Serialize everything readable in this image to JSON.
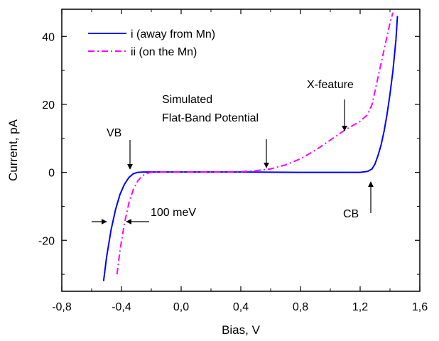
{
  "chart_data": {
    "type": "line",
    "xlabel": "Bias, V",
    "ylabel": "Current, pA",
    "xlim": [
      -0.8,
      1.6
    ],
    "ylim": [
      -35,
      48
    ],
    "xticks": [
      -0.8,
      -0.4,
      0.0,
      0.4,
      0.8,
      1.2,
      1.6
    ],
    "xtick_labels": [
      "-0,8",
      "-0,4",
      "0,0",
      "0,4",
      "0,8",
      "1,2",
      "1,6"
    ],
    "yticks": [
      -20,
      0,
      20,
      40
    ],
    "ytick_labels": [
      "-20",
      "0",
      "20",
      "40"
    ],
    "grid": false,
    "legend_position": "top-left",
    "series": [
      {
        "name": "i  (away from Mn)",
        "color": "#0000ff",
        "style": "solid",
        "x": [
          -0.52,
          -0.5,
          -0.47,
          -0.44,
          -0.41,
          -0.38,
          -0.35,
          -0.32,
          -0.29,
          -0.25,
          -0.2,
          0.0,
          0.4,
          0.8,
          1.0,
          1.2,
          1.25,
          1.28,
          1.3,
          1.32,
          1.34,
          1.36,
          1.38,
          1.4,
          1.42,
          1.44,
          1.45
        ],
        "y": [
          -32,
          -25,
          -17,
          -11,
          -6.5,
          -3.5,
          -1.5,
          -0.4,
          0,
          0.1,
          0.1,
          0.1,
          0.1,
          0,
          0,
          0,
          0.3,
          1,
          2.5,
          5,
          8,
          12,
          17,
          23,
          30,
          39,
          46
        ]
      },
      {
        "name": "ii (on the Mn)",
        "color": "#ff00ff",
        "style": "dashdot",
        "x": [
          -0.43,
          -0.41,
          -0.38,
          -0.35,
          -0.32,
          -0.29,
          -0.26,
          -0.23,
          -0.2,
          -0.15,
          -0.1,
          0.0,
          0.2,
          0.4,
          0.5,
          0.6,
          0.7,
          0.8,
          0.9,
          1.0,
          1.1,
          1.2,
          1.25,
          1.28,
          1.3,
          1.33,
          1.36,
          1.38,
          1.4,
          1.42
        ],
        "y": [
          -30,
          -23,
          -15,
          -9,
          -5,
          -2.5,
          -1,
          -0.3,
          0,
          0.1,
          0.1,
          0.1,
          0.1,
          0.2,
          0.5,
          1,
          2.2,
          4,
          6.5,
          9.5,
          12.5,
          15,
          17,
          20,
          24,
          30,
          36,
          40,
          44,
          47
        ]
      }
    ],
    "annotations": {
      "vb": "VB",
      "simulated": [
        "Simulated",
        "Flat-Band Potential"
      ],
      "xfeature": "X-feature",
      "mev": "100 meV",
      "cb": "CB"
    }
  }
}
